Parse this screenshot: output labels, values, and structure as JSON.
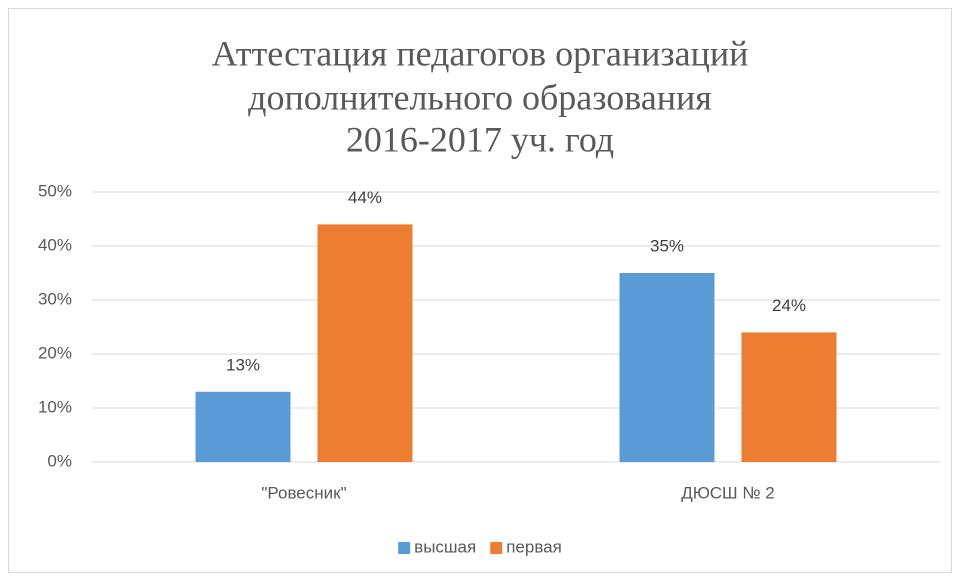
{
  "chart_data": {
    "type": "bar",
    "title": [
      "Аттестация педагогов организаций",
      "дополнительного образования",
      "2016-2017 уч. год"
    ],
    "categories": [
      "\"Ровесник\"",
      "ДЮСШ № 2"
    ],
    "series": [
      {
        "name": "высшая",
        "color": "#5b9bd5",
        "values": [
          13,
          35
        ],
        "value_labels": [
          "13%",
          "35%"
        ]
      },
      {
        "name": "первая",
        "color": "#ed7d31",
        "values": [
          44,
          24
        ],
        "value_labels": [
          "44%",
          "24%"
        ]
      }
    ],
    "ylim": [
      0,
      50
    ],
    "yticks": [
      {
        "value": 0,
        "label": "0%"
      },
      {
        "value": 10,
        "label": "10%"
      },
      {
        "value": 20,
        "label": "20%"
      },
      {
        "value": 30,
        "label": "30%"
      },
      {
        "value": 40,
        "label": "40%"
      },
      {
        "value": 50,
        "label": "50%"
      }
    ],
    "grid": true,
    "legend": "bottom"
  }
}
